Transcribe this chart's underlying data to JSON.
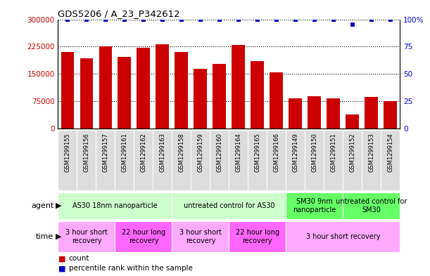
{
  "title": "GDS5206 / A_23_P342612",
  "samples": [
    "GSM1299155",
    "GSM1299156",
    "GSM1299157",
    "GSM1299161",
    "GSM1299162",
    "GSM1299163",
    "GSM1299158",
    "GSM1299159",
    "GSM1299160",
    "GSM1299164",
    "GSM1299165",
    "GSM1299166",
    "GSM1299149",
    "GSM1299150",
    "GSM1299151",
    "GSM1299152",
    "GSM1299153",
    "GSM1299154"
  ],
  "counts": [
    210000,
    192000,
    225000,
    197000,
    222000,
    232000,
    210000,
    163000,
    177000,
    230000,
    185000,
    155000,
    83000,
    88000,
    83000,
    38000,
    87000,
    75000
  ],
  "percentile_ranks": [
    100,
    100,
    100,
    100,
    100,
    100,
    100,
    100,
    100,
    100,
    100,
    100,
    100,
    100,
    100,
    95,
    100,
    100
  ],
  "bar_color": "#cc0000",
  "dot_color": "#0000cc",
  "ylim_left": [
    0,
    300000
  ],
  "ylim_right": [
    0,
    100
  ],
  "yticks_left": [
    0,
    75000,
    150000,
    225000,
    300000
  ],
  "ytick_labels_left": [
    "0",
    "75000",
    "150000",
    "225000",
    "300000"
  ],
  "yticks_right": [
    0,
    25,
    50,
    75,
    100
  ],
  "ytick_labels_right": [
    "0",
    "25",
    "50",
    "75",
    "100%"
  ],
  "agent_groups": [
    {
      "label": "AS30 18nm nanoparticle",
      "start": 0,
      "end": 6,
      "color": "#ccffcc"
    },
    {
      "label": "untreated control for AS30",
      "start": 6,
      "end": 12,
      "color": "#ccffcc"
    },
    {
      "label": "SM30 9nm\nnanoparticle",
      "start": 12,
      "end": 15,
      "color": "#66ff66"
    },
    {
      "label": "untreated control for\nSM30",
      "start": 15,
      "end": 18,
      "color": "#66ff66"
    }
  ],
  "time_groups": [
    {
      "label": "3 hour short\nrecovery",
      "start": 0,
      "end": 3,
      "color": "#ffaaff"
    },
    {
      "label": "22 hour long\nrecovery",
      "start": 3,
      "end": 6,
      "color": "#ff66ff"
    },
    {
      "label": "3 hour short\nrecovery",
      "start": 6,
      "end": 9,
      "color": "#ffaaff"
    },
    {
      "label": "22 hour long\nrecovery",
      "start": 9,
      "end": 12,
      "color": "#ff66ff"
    },
    {
      "label": "3 hour short recovery",
      "start": 12,
      "end": 18,
      "color": "#ffaaff"
    }
  ],
  "sample_box_color": "#dddddd",
  "legend_count_color": "#cc0000",
  "legend_dot_color": "#0000cc"
}
